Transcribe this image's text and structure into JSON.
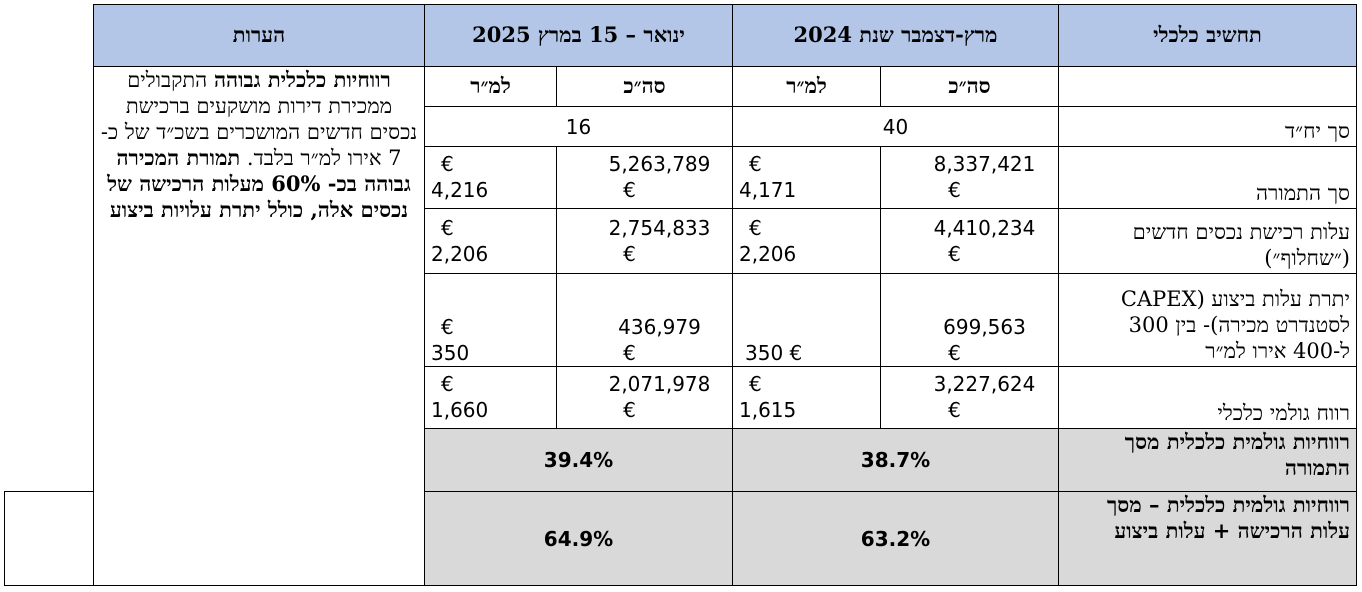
{
  "headers": {
    "calc": "תחשיב כלכלי",
    "period_2024": "מרץ-דצמבר שנת 2024",
    "period_2025": "ינואר – 15 במרץ 2025",
    "notes": "הערות",
    "total": "סה״כ",
    "per_sqm": "למ״ר"
  },
  "rows": {
    "units": {
      "label": "סך יח״ד",
      "v2024": "40",
      "v2025": "16"
    },
    "revenue": {
      "label": "סך התמורה",
      "t2024": "8,337,421",
      "p2024": "4,171",
      "t2025": "5,263,789",
      "p2025": "4,216"
    },
    "acquisition": {
      "label": "עלות רכישת נכסים חדשים (״שחלוף״)",
      "t2024": "4,410,234",
      "p2024": "2,206",
      "t2025": "2,754,833",
      "p2025": "2,206"
    },
    "capex": {
      "label": "יתרת עלות ביצוע (CAPEX לסטנדרט מכירה)- בין 300 ל-400 אירו למ״ר",
      "t2024": "699,563",
      "p2024": "350",
      "t2025": "436,979",
      "p2025": "350"
    },
    "gross_profit": {
      "label": "רווח גולמי כלכלי",
      "t2024": "3,227,624",
      "p2024": "1,615",
      "t2025": "2,071,978",
      "p2025": "1,660"
    },
    "margin_revenue": {
      "label": "רווחיות גולמית כלכלית מסך התמורה",
      "v2024": "38.7%",
      "v2025": "39.4%"
    },
    "margin_cost": {
      "label": "רווחיות גולמית כלכלית – מסך עלות הרכישה + עלות ביצוע",
      "v2024": "63.2%",
      "v2025": "64.9%"
    }
  },
  "currency_symbol": "€",
  "notes": {
    "part1_bold": "רווחיות כלכלית גבוהה",
    "part2": "התקבולים ממכירת דירות מושקעים ברכישת נכסים חדשים המושכרים בשכ״ד של כ- 7 אירו למ״ר בלבד.",
    "part3_bold": "תמורת המכירה גבוהה בכ- 60% מעלות הרכישה של נכסים אלה, כולל יתרת עלויות ביצוע"
  }
}
